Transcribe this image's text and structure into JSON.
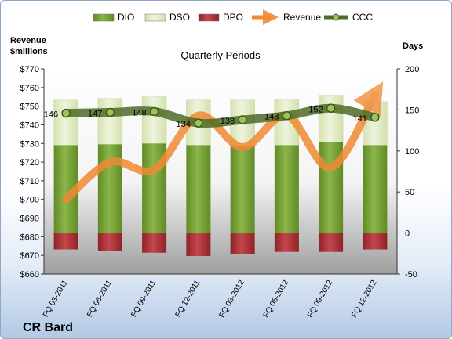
{
  "chart_data": {
    "type": "bar",
    "title": "Quarterly Periods",
    "company": "CR Bard",
    "categories": [
      "FQ 03-2011",
      "FQ 06-2011",
      "FQ 09-2011",
      "FQ 12-2011",
      "FQ 03-2012",
      "FQ 06-2012",
      "FQ 09-2012",
      "FQ 12-2012"
    ],
    "y_left": {
      "label_line1": "Revenue",
      "label_line2": "$millions",
      "ylim": [
        660,
        770
      ],
      "ticks": [
        660,
        670,
        680,
        690,
        700,
        710,
        720,
        730,
        740,
        750,
        760,
        770
      ],
      "tick_prefix": "$"
    },
    "y_right": {
      "label": "Days",
      "ylim": [
        -50,
        200
      ],
      "ticks": [
        -50,
        0,
        50,
        100,
        150,
        200
      ]
    },
    "series": [
      {
        "name": "DIO",
        "type": "stacked-bar",
        "color": "#77a03a",
        "values": [
          107,
          108,
          109,
          107,
          106,
          107,
          111,
          107
        ]
      },
      {
        "name": "DSO",
        "type": "stacked-bar",
        "color": "#e4edc9",
        "values": [
          55,
          56,
          57,
          55,
          56,
          56,
          57,
          53
        ]
      },
      {
        "name": "DPO",
        "type": "negative-bar",
        "color": "#b5343a",
        "values": [
          -20,
          -22,
          -24,
          -28,
          -26,
          -23,
          -23,
          -20
        ]
      },
      {
        "name": "Revenue",
        "type": "line",
        "color": "#f08a33",
        "values": [
          700,
          720,
          716,
          745,
          728,
          745,
          717,
          756
        ]
      },
      {
        "name": "CCC",
        "type": "line",
        "color": "#4f6b26",
        "values": [
          146,
          147,
          148,
          134,
          138,
          143,
          152,
          141
        ],
        "data_labels": [
          "146",
          "147",
          "148",
          "134",
          "138",
          "143",
          "152",
          "141"
        ]
      }
    ],
    "legend_position": "top",
    "grid": false
  }
}
